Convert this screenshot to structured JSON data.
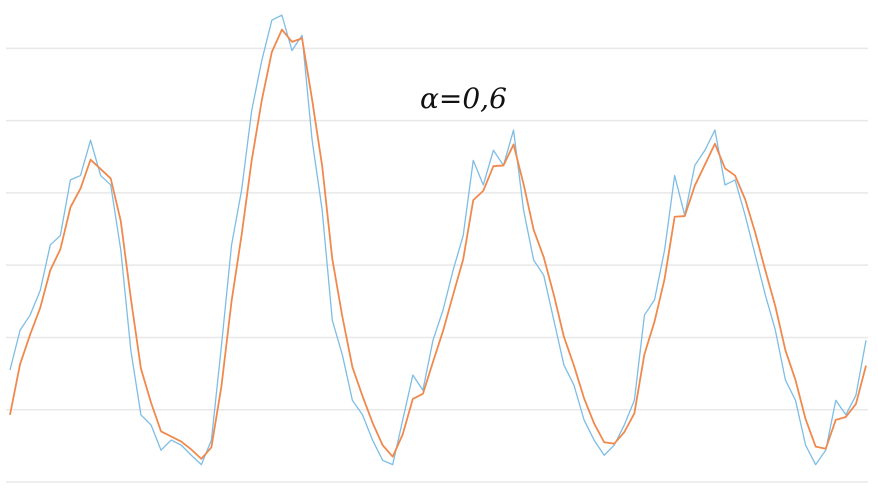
{
  "chart_data": {
    "type": "line",
    "annotation": "α=0,6",
    "x": [
      0,
      1,
      2,
      3,
      4,
      5,
      6,
      7,
      8,
      9,
      10,
      11,
      12,
      13,
      14,
      15,
      16,
      17,
      18,
      19,
      20,
      21,
      22,
      23,
      24,
      25,
      26,
      27,
      28,
      29,
      30,
      31,
      32,
      33,
      34,
      35,
      36,
      37,
      38,
      39,
      40,
      41,
      42,
      43,
      44,
      45,
      46,
      47,
      48,
      49,
      50,
      51,
      52,
      53,
      54,
      55,
      56,
      57,
      58,
      59,
      60,
      61,
      62,
      63,
      64,
      65,
      66,
      67,
      68,
      69,
      70,
      71,
      72,
      73,
      74,
      75,
      76,
      77,
      78,
      79,
      80,
      81,
      82,
      83,
      84,
      85
    ],
    "xlim": [
      0,
      85
    ],
    "ylim": [
      0,
      6.6
    ],
    "yticks": [
      0,
      1,
      2,
      3,
      4,
      5,
      6
    ],
    "grid": true,
    "series": [
      {
        "color": "#7dbde6",
        "values": [
          1.55,
          2.1,
          2.31,
          2.65,
          3.28,
          3.41,
          4.18,
          4.24,
          4.73,
          4.24,
          4.11,
          3.21,
          1.82,
          0.93,
          0.79,
          0.44,
          0.58,
          0.51,
          0.37,
          0.24,
          0.58,
          1.89,
          3.28,
          4.04,
          5.14,
          5.83,
          6.39,
          6.46,
          5.97,
          6.18,
          4.73,
          3.76,
          2.24,
          1.76,
          1.13,
          0.93,
          0.58,
          0.3,
          0.24,
          0.86,
          1.48,
          1.27,
          1.96,
          2.38,
          2.93,
          3.41,
          4.45,
          4.11,
          4.59,
          4.38,
          4.87,
          3.76,
          3.07,
          2.86,
          2.24,
          1.62,
          1.34,
          0.86,
          0.58,
          0.37,
          0.51,
          0.79,
          1.13,
          2.31,
          2.52,
          3.21,
          4.24,
          3.69,
          4.38,
          4.59,
          4.87,
          4.11,
          4.18,
          3.69,
          3.14,
          2.59,
          2.1,
          1.41,
          1.13,
          0.51,
          0.24,
          0.44,
          1.13,
          0.93,
          1.2,
          1.96
        ]
      },
      {
        "color": "#f0894d",
        "values": [
          0.93,
          1.63,
          2.04,
          2.41,
          2.93,
          3.22,
          3.8,
          4.06,
          4.46,
          4.33,
          4.2,
          3.61,
          2.54,
          1.57,
          1.1,
          0.7,
          0.63,
          0.56,
          0.45,
          0.32,
          0.48,
          1.33,
          2.5,
          3.42,
          4.45,
          5.28,
          5.95,
          6.26,
          6.09,
          6.14,
          5.29,
          4.37,
          3.09,
          2.29,
          1.59,
          1.19,
          0.82,
          0.51,
          0.35,
          0.66,
          1.15,
          1.22,
          1.66,
          2.09,
          2.59,
          3.08,
          3.9,
          4.03,
          4.37,
          4.38,
          4.67,
          4.12,
          3.49,
          3.11,
          2.59,
          2.01,
          1.61,
          1.16,
          0.81,
          0.55,
          0.53,
          0.69,
          0.95,
          1.77,
          2.22,
          2.81,
          3.67,
          3.68,
          4.1,
          4.39,
          4.68,
          4.34,
          4.24,
          3.91,
          3.45,
          2.93,
          2.43,
          1.82,
          1.41,
          0.87,
          0.49,
          0.46,
          0.86,
          0.9,
          1.08,
          1.61
        ]
      }
    ]
  }
}
